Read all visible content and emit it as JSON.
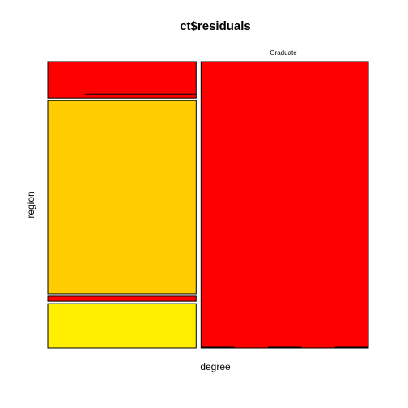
{
  "chart_data": {
    "type": "mosaic",
    "title": "ct$residuals",
    "xlabel": "degree",
    "ylabel": "region",
    "column_labels": [
      "",
      "Graduate"
    ],
    "columns": [
      {
        "label": "",
        "width_fraction": 0.47,
        "cells": [
          {
            "fraction": 0.131,
            "color": "#FF0000",
            "ticks": [
              {
                "from": 0.25,
                "to": 1.0,
                "level": 0.11
              }
            ]
          },
          {
            "fraction": 0.692,
            "color": "#FFCC00"
          },
          {
            "fraction": 0.018,
            "color": "#FF0000"
          },
          {
            "fraction": 0.159,
            "color": "#FFEE00"
          }
        ]
      },
      {
        "label": "Graduate",
        "width_fraction": 0.53,
        "cells": [
          {
            "fraction": 1.0,
            "color": "#FF0000"
          }
        ],
        "bottom_dashes": [
          [
            0.0,
            0.2
          ],
          [
            0.4,
            0.6
          ],
          [
            0.8,
            1.0
          ]
        ]
      }
    ]
  }
}
